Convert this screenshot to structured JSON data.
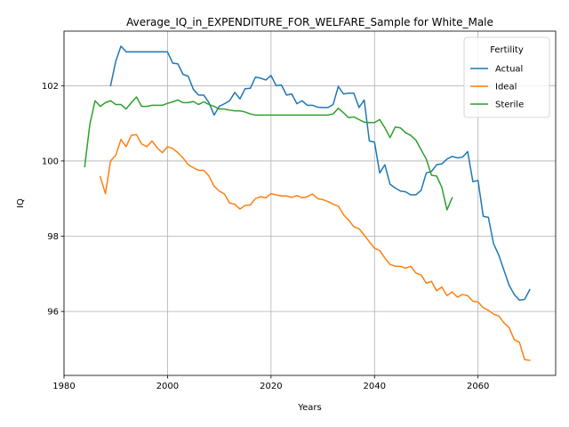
{
  "chart_data": {
    "type": "line",
    "title": "Average_IQ_in_EXPENDITURE_FOR_WELFARE_Sample for White_Male",
    "xlabel": "Years",
    "ylabel": "IQ",
    "xlim": [
      1980,
      2075
    ],
    "ylim": [
      94.3,
      103.45
    ],
    "xticks": [
      1980,
      2000,
      2020,
      2040,
      2060
    ],
    "yticks": [
      96,
      98,
      100,
      102
    ],
    "grid": true,
    "legend": {
      "title": "Fertility",
      "position": "top-right"
    },
    "series": [
      {
        "name": "Actual",
        "color": "#1f77b4",
        "x": [
          1989,
          1990,
          1991,
          1992,
          1993,
          1994,
          1995,
          1996,
          1997,
          1998,
          1999,
          2000,
          2001,
          2002,
          2003,
          2004,
          2005,
          2006,
          2007,
          2008,
          2009,
          2010,
          2011,
          2012,
          2013,
          2014,
          2015,
          2016,
          2017,
          2018,
          2019,
          2020,
          2021,
          2022,
          2023,
          2024,
          2025,
          2026,
          2027,
          2028,
          2029,
          2030,
          2031,
          2032,
          2033,
          2034,
          2035,
          2036,
          2037,
          2038,
          2039,
          2040,
          2041,
          2042,
          2043,
          2044,
          2045,
          2046,
          2047,
          2048,
          2049,
          2050,
          2051,
          2052,
          2053,
          2054,
          2055,
          2056,
          2057,
          2058,
          2059,
          2060,
          2061,
          2062,
          2063,
          2064,
          2065,
          2066,
          2067,
          2068,
          2069,
          2070
        ],
        "values": [
          102.0,
          102.65,
          103.05,
          102.9,
          102.9,
          102.9,
          102.9,
          102.9,
          102.9,
          102.9,
          102.9,
          102.9,
          102.6,
          102.58,
          102.3,
          102.25,
          101.9,
          101.75,
          101.75,
          101.55,
          101.22,
          101.45,
          101.52,
          101.6,
          101.82,
          101.65,
          101.92,
          101.93,
          102.23,
          102.2,
          102.15,
          102.27,
          102.0,
          102.02,
          101.75,
          101.78,
          101.52,
          101.6,
          101.48,
          101.48,
          101.43,
          101.42,
          101.42,
          101.5,
          101.98,
          101.78,
          101.8,
          101.8,
          101.42,
          101.62,
          100.53,
          100.5,
          99.68,
          99.9,
          99.38,
          99.28,
          99.2,
          99.18,
          99.1,
          99.1,
          99.22,
          99.68,
          99.72,
          99.9,
          99.92,
          100.05,
          100.12,
          100.08,
          100.1,
          100.25,
          99.45,
          99.48,
          98.53,
          98.5,
          97.8,
          97.5,
          97.1,
          96.7,
          96.45,
          96.3,
          96.32,
          96.58
        ]
      },
      {
        "name": "Ideal",
        "color": "#ff7f0e",
        "x": [
          1987,
          1988,
          1989,
          1990,
          1991,
          1992,
          1993,
          1994,
          1995,
          1996,
          1997,
          1998,
          1999,
          2000,
          2001,
          2002,
          2003,
          2004,
          2005,
          2006,
          2007,
          2008,
          2009,
          2010,
          2011,
          2012,
          2013,
          2014,
          2015,
          2016,
          2017,
          2018,
          2019,
          2020,
          2021,
          2022,
          2023,
          2024,
          2025,
          2026,
          2027,
          2028,
          2029,
          2030,
          2031,
          2032,
          2033,
          2034,
          2035,
          2036,
          2037,
          2038,
          2039,
          2040,
          2041,
          2042,
          2043,
          2044,
          2045,
          2046,
          2047,
          2048,
          2049,
          2050,
          2051,
          2052,
          2053,
          2054,
          2055,
          2056,
          2057,
          2058,
          2059,
          2060,
          2061,
          2062,
          2063,
          2064,
          2065,
          2066,
          2067,
          2068,
          2069,
          2070
        ],
        "values": [
          99.58,
          99.13,
          100.0,
          100.15,
          100.57,
          100.38,
          100.68,
          100.7,
          100.45,
          100.38,
          100.53,
          100.35,
          100.22,
          100.38,
          100.33,
          100.22,
          100.08,
          99.9,
          99.82,
          99.75,
          99.75,
          99.6,
          99.33,
          99.2,
          99.12,
          98.88,
          98.85,
          98.72,
          98.82,
          98.83,
          99.0,
          99.05,
          99.02,
          99.13,
          99.1,
          99.07,
          99.07,
          99.03,
          99.08,
          99.02,
          99.05,
          99.12,
          99.0,
          98.97,
          98.92,
          98.85,
          98.8,
          98.57,
          98.43,
          98.25,
          98.2,
          98.03,
          97.85,
          97.68,
          97.62,
          97.42,
          97.25,
          97.2,
          97.2,
          97.15,
          97.2,
          97.02,
          96.97,
          96.75,
          96.8,
          96.55,
          96.65,
          96.42,
          96.52,
          96.38,
          96.45,
          96.42,
          96.27,
          96.25,
          96.1,
          96.03,
          95.93,
          95.88,
          95.7,
          95.57,
          95.25,
          95.18,
          94.72,
          94.7
        ]
      },
      {
        "name": "Sterile",
        "color": "#2ca02c",
        "x": [
          1984,
          1985,
          1986,
          1987,
          1988,
          1989,
          1990,
          1991,
          1992,
          1993,
          1994,
          1995,
          1996,
          1997,
          1998,
          1999,
          2000,
          2001,
          2002,
          2003,
          2004,
          2005,
          2006,
          2007,
          2008,
          2009,
          2010,
          2011,
          2012,
          2013,
          2014,
          2015,
          2016,
          2017,
          2018,
          2019,
          2020,
          2021,
          2022,
          2023,
          2024,
          2025,
          2026,
          2027,
          2028,
          2029,
          2030,
          2031,
          2032,
          2033,
          2034,
          2035,
          2036,
          2037,
          2038,
          2039,
          2040,
          2041,
          2042,
          2043,
          2044,
          2045,
          2046,
          2047,
          2048,
          2049,
          2050,
          2051,
          2052,
          2053,
          2054,
          2055
        ],
        "values": [
          99.85,
          100.98,
          101.6,
          101.45,
          101.55,
          101.6,
          101.5,
          101.5,
          101.38,
          101.55,
          101.7,
          101.45,
          101.45,
          101.48,
          101.48,
          101.48,
          101.53,
          101.57,
          101.62,
          101.55,
          101.55,
          101.58,
          101.5,
          101.57,
          101.5,
          101.45,
          101.38,
          101.38,
          101.35,
          101.33,
          101.33,
          101.3,
          101.25,
          101.22,
          101.22,
          101.22,
          101.22,
          101.22,
          101.22,
          101.22,
          101.22,
          101.22,
          101.22,
          101.22,
          101.22,
          101.22,
          101.22,
          101.22,
          101.25,
          101.4,
          101.28,
          101.15,
          101.17,
          101.1,
          101.03,
          101.02,
          101.02,
          101.1,
          100.88,
          100.62,
          100.9,
          100.88,
          100.75,
          100.68,
          100.55,
          100.3,
          100.05,
          99.62,
          99.6,
          99.3,
          98.7,
          99.02
        ]
      }
    ]
  }
}
